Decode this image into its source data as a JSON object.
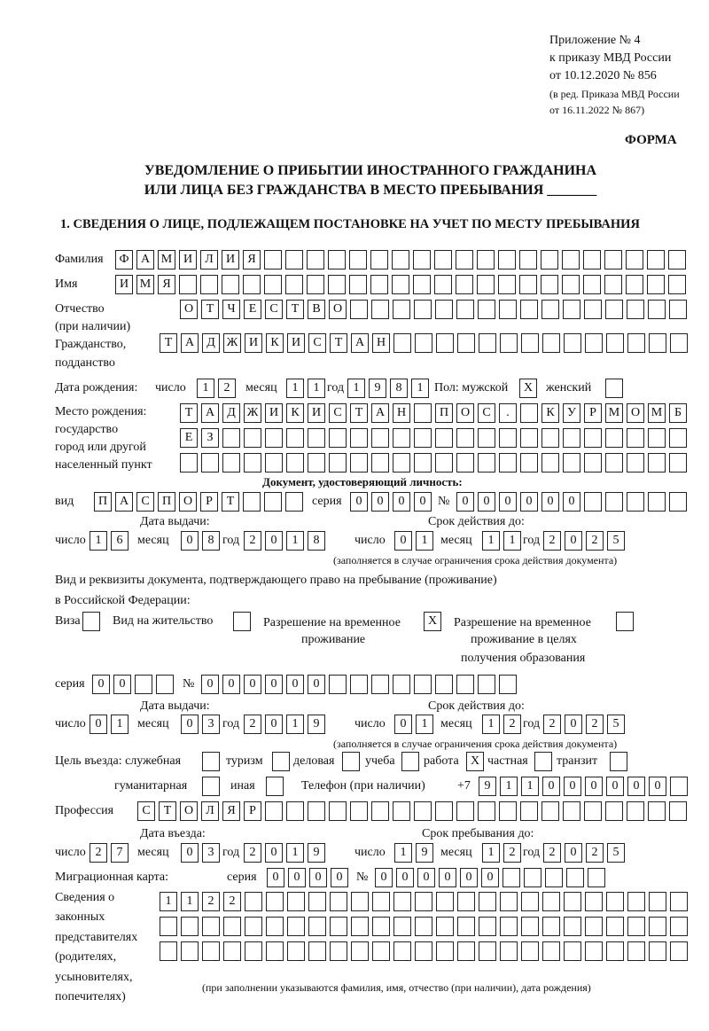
{
  "header": {
    "appendix": [
      "Приложение № 4",
      "к приказу МВД России",
      "от 10.12.2020 № 856"
    ],
    "revision": [
      "(в ред. Приказа МВД России",
      "от 16.11.2022 № 867)"
    ],
    "form_label": "ФОРМА",
    "title_line1": "УВЕДОМЛЕНИЕ О ПРИБЫТИИ ИНОСТРАННОГО ГРАЖДАНИНА",
    "title_line2": "ИЛИ ЛИЦА БЕЗ ГРАЖДАНСТВА В МЕСТО ПРЕБЫВАНИЯ _______",
    "section1": "1. СВЕДЕНИЯ О ЛИЦЕ, ПОДЛЕЖАЩЕМ ПОСТАНОВКЕ НА УЧЕТ ПО МЕСТУ ПРЕБЫВАНИЯ"
  },
  "person": {
    "surname_label": "Фамилия",
    "surname": "ФАМИЛИЯ",
    "name_label": "Имя",
    "name": "ИМЯ",
    "patronymic_label": "Отчество",
    "patronymic_note": "(при наличии)",
    "patronymic": "ОТЧЕСТВО",
    "citizenship_label1": "Гражданство,",
    "citizenship_label2": "подданство",
    "citizenship": "ТАДЖИКИСТАН",
    "birth_date_label": "Дата рождения:",
    "day_label": "число",
    "month_label": "месяц",
    "year_label": "год",
    "birth_day": "12",
    "birth_month": "11",
    "birth_year": "1981",
    "sex_label": "Пол: мужской",
    "female_label": "женский",
    "male_mark": "X",
    "female_mark": "",
    "birthplace_labels": [
      "Место рождения:",
      "государство",
      "город или другой",
      "населенный пункт"
    ],
    "birthplace": [
      "ТАДЖИКИСТАН ПОС. КУРМОМБ",
      "ЕЗ",
      ""
    ]
  },
  "id_doc": {
    "heading": "Документ, удостоверяющий личность:",
    "type_label": "вид",
    "type": "ПАСПОРТ",
    "series_label": "серия",
    "series": "0000",
    "number_label": "№",
    "number": "000000",
    "issue_label": "Дата выдачи:",
    "valid_label": "Срок действия до:",
    "issue_day": "16",
    "issue_month": "08",
    "issue_year": "2018",
    "valid_day": "01",
    "valid_month": "11",
    "valid_year": "2025",
    "note": "(заполняется в случае ограничения срока действия документа)"
  },
  "stay_doc": {
    "heading1": "Вид и реквизиты документа, подтверждающего право на пребывание (проживание)",
    "heading2": "в Российской Федерации:",
    "visa_label": "Виза",
    "visa_mark": "",
    "residence_label": "Вид на жительство",
    "residence_mark": "",
    "trp_label1": "Разрешение на временное",
    "trp_label2": "проживание",
    "trp_mark": "X",
    "trp_edu_label1": "Разрешение на временное",
    "trp_edu_label2": "проживание в целях",
    "trp_edu_label3": "получения образования",
    "trp_edu_mark": "",
    "series_label": "серия",
    "series": "00",
    "number_label": "№",
    "number": "000000",
    "issue_label": "Дата выдачи:",
    "valid_label": "Срок действия до:",
    "issue_day": "01",
    "issue_month": "03",
    "issue_year": "2019",
    "valid_day": "01",
    "valid_month": "12",
    "valid_year": "2025",
    "note": "(заполняется в случае ограничения срока действия документа)"
  },
  "purpose": {
    "label": "Цель въезда: служебная",
    "official": "",
    "tourism_label": "туризм",
    "tourism": "",
    "business_label": "деловая",
    "business": "",
    "study_label": "учеба",
    "study": "",
    "work_label": "работа",
    "work": "X",
    "private_label": "частная",
    "private": "",
    "transit_label": "транзит",
    "transit": "",
    "humanitarian_label": "гуманитарная",
    "humanitarian": "",
    "other_label": "иная",
    "other": ""
  },
  "phone": {
    "label": "Телефон (при наличии)",
    "prefix": "+7",
    "value": "911000000"
  },
  "profession": {
    "label": "Профессия",
    "value": "СТОЛЯР"
  },
  "entry": {
    "entry_label": "Дата въезда:",
    "stay_until_label": "Срок пребывания до:",
    "entry_day": "27",
    "entry_month": "03",
    "entry_year": "2019",
    "until_day": "19",
    "until_month": "12",
    "until_year": "2025"
  },
  "migration_card": {
    "label": "Миграционная карта:",
    "series_label": "серия",
    "series": "0000",
    "number_label": "№",
    "number": "000000"
  },
  "representatives": {
    "labels": [
      "Сведения о",
      "законных",
      "представителях",
      "(родителях,",
      "усыновителях,",
      "попечителях)"
    ],
    "rows": [
      "1122",
      "",
      ""
    ],
    "note": "(при заполнении указываются фамилия, имя, отчество (при наличии), дата рождения)"
  }
}
